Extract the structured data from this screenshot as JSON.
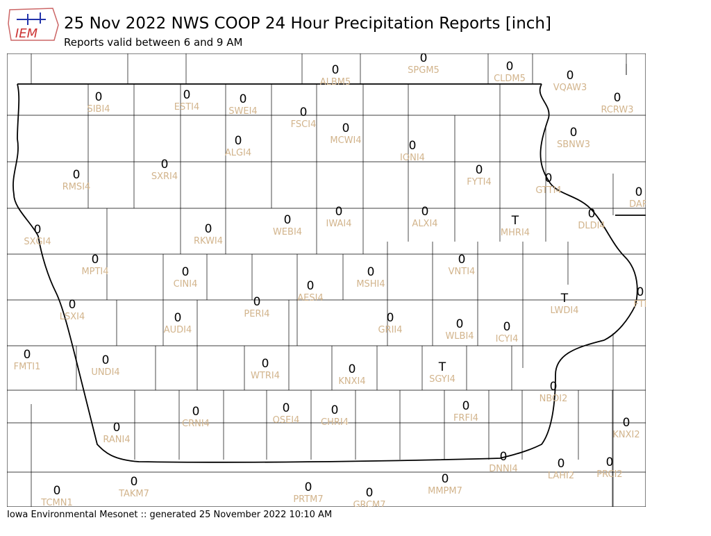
{
  "header": {
    "title": "25 Nov 2022 NWS COOP 24 Hour Precipitation Reports [inch]",
    "subtitle": "Reports valid between 6 and 9 AM",
    "logo": "IEM"
  },
  "footer": "Iowa Environmental Mesonet :: generated 25 November 2022 10:10 AM",
  "stations": [
    {
      "value": "0",
      "id": "ALBM5"
    },
    {
      "value": "0",
      "id": "SPGM5"
    },
    {
      "value": "0",
      "id": "CLDM5"
    },
    {
      "value": "0",
      "id": "VQAW3"
    },
    {
      "value": "0",
      "id": "RCRW3"
    },
    {
      "value": "0",
      "id": "SIBI4"
    },
    {
      "value": "0",
      "id": "ESTI4"
    },
    {
      "value": "0",
      "id": "SWEI4"
    },
    {
      "value": "0",
      "id": "FSCI4"
    },
    {
      "value": "0",
      "id": "MCWI4"
    },
    {
      "value": "0",
      "id": "SBNW3"
    },
    {
      "value": "0",
      "id": "ALGI4"
    },
    {
      "value": "0",
      "id": "IONI4"
    },
    {
      "value": "0",
      "id": "FYTI4"
    },
    {
      "value": "0",
      "id": "GTTI4"
    },
    {
      "value": "0",
      "id": "SXRI4"
    },
    {
      "value": "0",
      "id": "RMSI4"
    },
    {
      "value": "0",
      "id": "DAR"
    },
    {
      "value": "0",
      "id": "ALXI4"
    },
    {
      "value": "0",
      "id": "IWAI4"
    },
    {
      "value": "0",
      "id": "WEBI4"
    },
    {
      "value": "T",
      "id": "MHRI4"
    },
    {
      "value": "0",
      "id": "DLDI4"
    },
    {
      "value": "0",
      "id": "SXGI4"
    },
    {
      "value": "0",
      "id": "RKWI4"
    },
    {
      "value": "0",
      "id": "MPTI4"
    },
    {
      "value": "0",
      "id": "VNTI4"
    },
    {
      "value": "0",
      "id": "CINI4"
    },
    {
      "value": "0",
      "id": "MSHI4"
    },
    {
      "value": "0",
      "id": "AESI4"
    },
    {
      "value": "0",
      "id": "FTI"
    },
    {
      "value": "T",
      "id": "LWDI4"
    },
    {
      "value": "0",
      "id": "PERI4"
    },
    {
      "value": "0",
      "id": "LSXI4"
    },
    {
      "value": "0",
      "id": "AUDI4"
    },
    {
      "value": "0",
      "id": "GRII4"
    },
    {
      "value": "0",
      "id": "WLBI4"
    },
    {
      "value": "0",
      "id": "ICYI4"
    },
    {
      "value": "0",
      "id": "FMTI1"
    },
    {
      "value": "0",
      "id": "UNDI4"
    },
    {
      "value": "0",
      "id": "WTRI4"
    },
    {
      "value": "0",
      "id": "KNXI4"
    },
    {
      "value": "T",
      "id": "SGYI4"
    },
    {
      "value": "0",
      "id": "NBOI2"
    },
    {
      "value": "0",
      "id": "CRNI4"
    },
    {
      "value": "0",
      "id": "OSEI4"
    },
    {
      "value": "0",
      "id": "CHRI4"
    },
    {
      "value": "0",
      "id": "FRFI4"
    },
    {
      "value": "0",
      "id": "KNXI2"
    },
    {
      "value": "0",
      "id": "RANI4"
    },
    {
      "value": "0",
      "id": "DNNI4"
    },
    {
      "value": "0",
      "id": "LAHI2"
    },
    {
      "value": "0",
      "id": "PRCI2"
    },
    {
      "value": "0",
      "id": "MMPM7"
    },
    {
      "value": "0",
      "id": "TAKM7"
    },
    {
      "value": "0",
      "id": "PRTM7"
    },
    {
      "value": "0",
      "id": "GRCM7"
    },
    {
      "value": "0",
      "id": "TCMN1"
    }
  ]
}
